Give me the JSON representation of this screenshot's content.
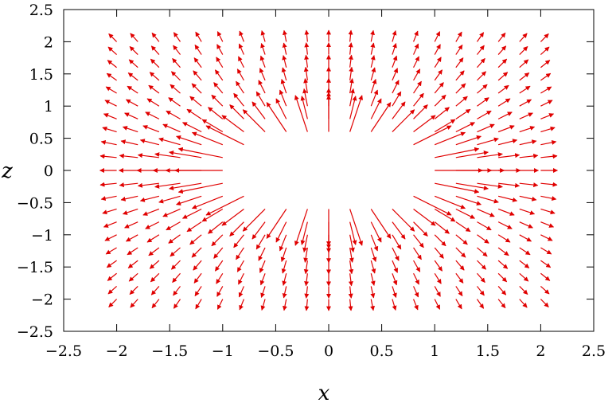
{
  "chart_data": {
    "type": "quiver",
    "title": "",
    "xlabel": "x",
    "ylabel": "z",
    "xlim": [
      -2.5,
      2.5
    ],
    "ylim": [
      -2.5,
      2.5
    ],
    "xticks": [
      "−2.5",
      "−2",
      "−1.5",
      "−1",
      "−0.5",
      "0",
      "0.5",
      "1",
      "1.5",
      "2",
      "2.5"
    ],
    "yticks": [
      "2.5",
      "2",
      "1.5",
      "1",
      "0.5",
      "0",
      "−0.5",
      "−1",
      "−1.5",
      "−2",
      "−2.5"
    ],
    "grid": false,
    "arrow_color": "#e00000",
    "field": {
      "x_range": [
        -2,
        2
      ],
      "z_range": [
        -2,
        2
      ],
      "x_samples": 21,
      "z_samples": 21,
      "excluded_region": "ellipse centered at (0,0), semi-axes 0.95 in x and 0.5 in z",
      "pattern": "radial field pointing away from the origin; long arrows near the central region, short arrows farther out"
    }
  }
}
